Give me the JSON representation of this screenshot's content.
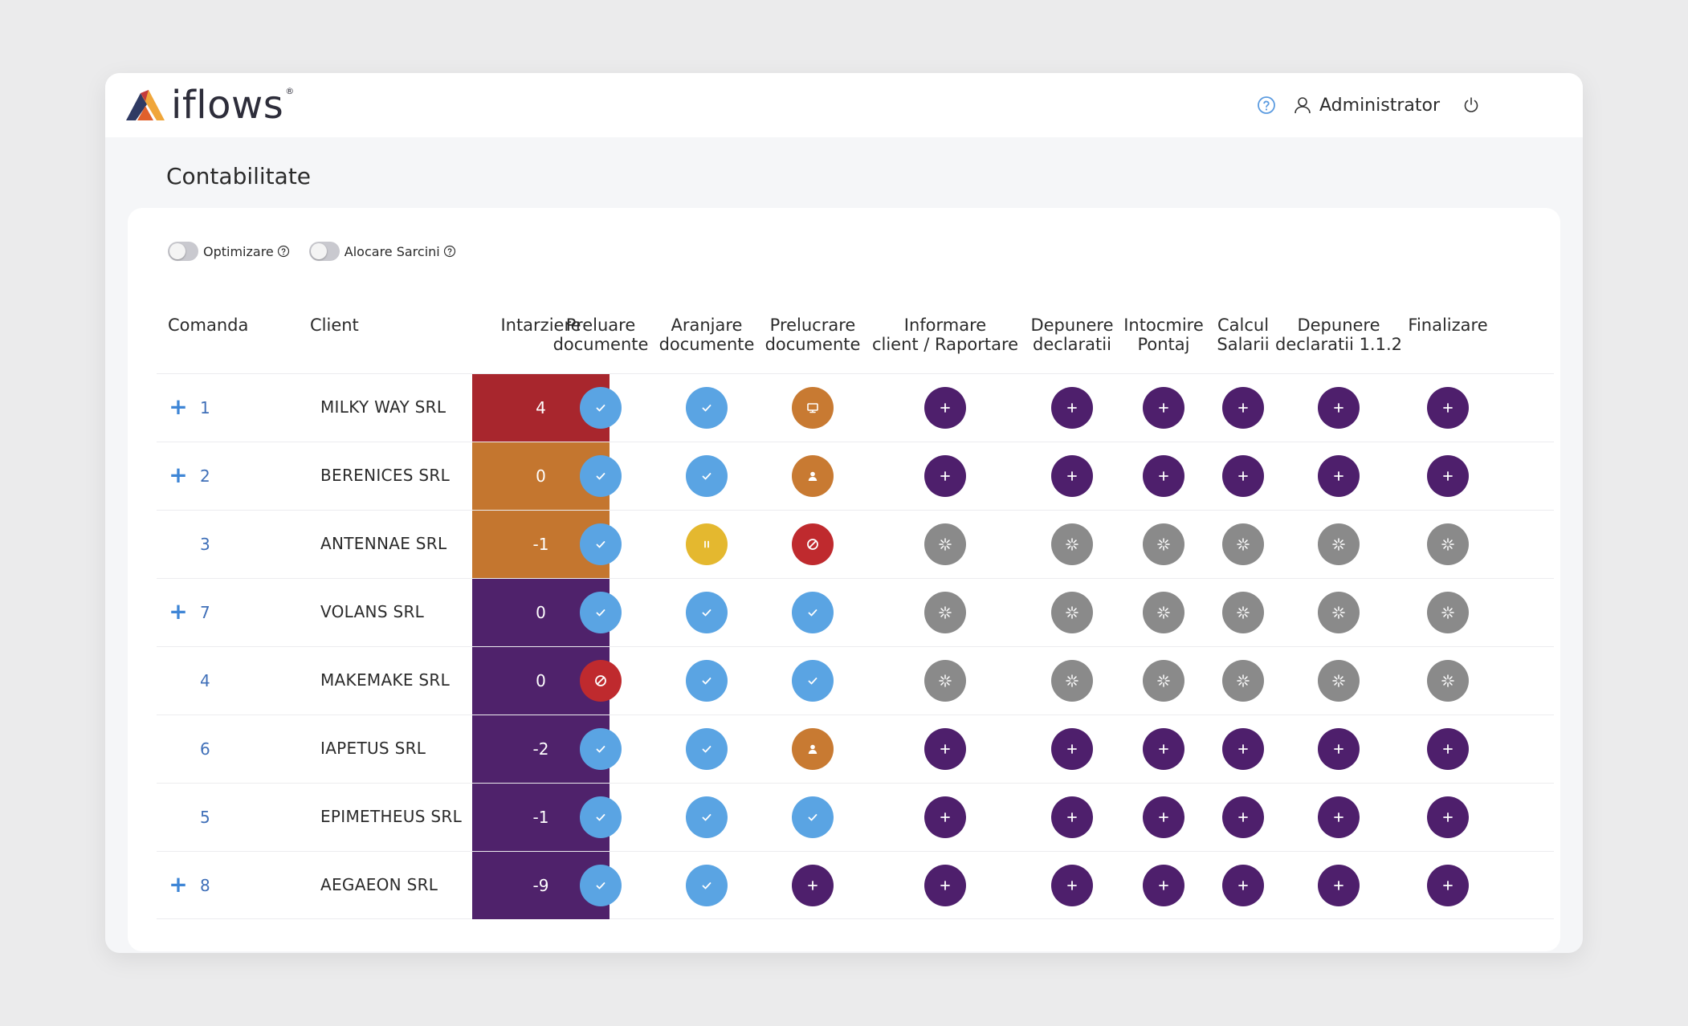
{
  "app": {
    "logo_text": "iflows",
    "logo_reg": "®",
    "user_name": "Administrator"
  },
  "page": {
    "title": "Contabilitate"
  },
  "toggles": [
    {
      "label": "Optimizare",
      "on": false
    },
    {
      "label": "Alocare Sarcini",
      "on": false
    }
  ],
  "columns": {
    "comanda": "Comanda",
    "client": "Client",
    "intarziere": "Intarziere",
    "steps": [
      "Preluare\ndocumente",
      "Aranjare\ndocumente",
      "Prelucrare\ndocumente",
      "Informare\nclient / Raportare",
      "Depunere\ndeclaratii",
      "Intocmire\nPontaj",
      "Calcul\nSalarii",
      "Depunere\ndeclaratii 1.1.2",
      "Finalizare"
    ]
  },
  "colors": {
    "red": "#a8262d",
    "orange": "#c4762f",
    "purple": "#4f226b",
    "blue": "#5aa4e3",
    "yellow": "#e4b82f",
    "gray": "#8a8a8a",
    "block_red": "#bf2a2e",
    "person_orange": "#c87a32",
    "step_purple": "#4e1f6c"
  },
  "rows": [
    {
      "expand": true,
      "comanda": "1",
      "client": "MILKY WAY SRL",
      "delay": "4",
      "delay_color": "red",
      "steps": [
        "done",
        "done",
        "screen",
        "add",
        "add",
        "add",
        "add",
        "add",
        "add"
      ]
    },
    {
      "expand": true,
      "comanda": "2",
      "client": "BERENICES SRL",
      "delay": "0",
      "delay_color": "orange",
      "steps": [
        "done",
        "done",
        "person",
        "add",
        "add",
        "add",
        "add",
        "add",
        "add"
      ]
    },
    {
      "expand": false,
      "comanda": "3",
      "client": "ANTENNAE SRL",
      "delay": "-1",
      "delay_color": "orange",
      "steps": [
        "done",
        "paused",
        "blocked",
        "waiting",
        "waiting",
        "waiting",
        "waiting",
        "waiting",
        "waiting"
      ]
    },
    {
      "expand": true,
      "comanda": "7",
      "client": "VOLANS SRL",
      "delay": "0",
      "delay_color": "purple",
      "steps": [
        "done",
        "done",
        "done",
        "waiting",
        "waiting",
        "waiting",
        "waiting",
        "waiting",
        "waiting"
      ]
    },
    {
      "expand": false,
      "comanda": "4",
      "client": "MAKEMAKE SRL",
      "delay": "0",
      "delay_color": "purple",
      "steps": [
        "blocked",
        "done",
        "done",
        "waiting",
        "waiting",
        "waiting",
        "waiting",
        "waiting",
        "waiting"
      ]
    },
    {
      "expand": false,
      "comanda": "6",
      "client": "IAPETUS SRL",
      "delay": "-2",
      "delay_color": "purple",
      "steps": [
        "done",
        "done",
        "person",
        "add",
        "add",
        "add",
        "add",
        "add",
        "add"
      ]
    },
    {
      "expand": false,
      "comanda": "5",
      "client": "EPIMETHEUS SRL",
      "delay": "-1",
      "delay_color": "purple",
      "steps": [
        "done",
        "done",
        "done",
        "add",
        "add",
        "add",
        "add",
        "add",
        "add"
      ]
    },
    {
      "expand": true,
      "comanda": "8",
      "client": "AEGAEON SRL",
      "delay": "-9",
      "delay_color": "purple",
      "steps": [
        "done",
        "done",
        "add",
        "add",
        "add",
        "add",
        "add",
        "add",
        "add"
      ]
    }
  ],
  "status_icons": {
    "done": "check-icon",
    "add": "plus-icon",
    "waiting": "spinner-icon",
    "blocked": "blocked-icon",
    "paused": "pause-icon",
    "screen": "monitor-icon",
    "person": "person-icon"
  },
  "expand_symbol": "+"
}
